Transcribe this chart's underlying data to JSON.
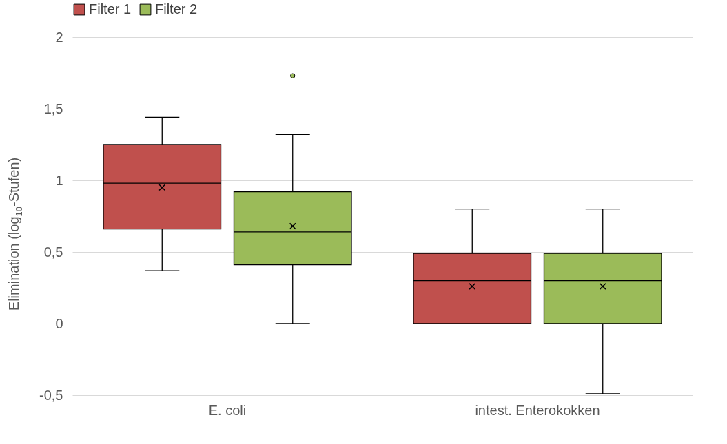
{
  "chart_data": {
    "type": "box",
    "ylabel": "Elimination (log$_{10}$-Stufen)",
    "categories": [
      "E. coli",
      "intest. Enterokokken"
    ],
    "series": [
      {
        "name": "Filter 1",
        "color": "#c0504d",
        "boxes": [
          {
            "low": 0.37,
            "q1": 0.66,
            "median": 0.98,
            "q3": 1.25,
            "high": 1.44,
            "mean": 0.95
          },
          {
            "low": 0,
            "q1": 0,
            "median": 0.3,
            "q3": 0.49,
            "high": 0.8,
            "mean": 0.26
          }
        ]
      },
      {
        "name": "Filter 2",
        "color": "#9bbb59",
        "boxes": [
          {
            "low": 0,
            "q1": 0.41,
            "median": 0.64,
            "q3": 0.92,
            "high": 1.32,
            "mean": 0.68,
            "outliers": [
              1.73
            ]
          },
          {
            "low": -0.49,
            "q1": 0,
            "median": 0.3,
            "q3": 0.49,
            "high": 0.8,
            "mean": 0.26
          }
        ]
      }
    ],
    "ylim": [
      -0.5,
      2
    ],
    "yticks": [
      {
        "value": -0.5,
        "label": "-0,5"
      },
      0,
      {
        "value": 0.5,
        "label": "0,5"
      },
      1,
      {
        "value": 1.5,
        "label": "1,5"
      },
      2
    ],
    "grid": "y",
    "legend": "top",
    "marker": "cross"
  }
}
